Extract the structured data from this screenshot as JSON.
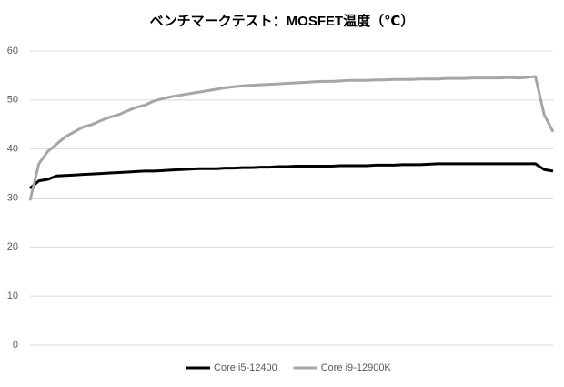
{
  "chart_data": {
    "type": "line",
    "title": "ベンチマークテスト：MOSFET温度（℃）",
    "series": [
      {
        "name": "Core i5-12400",
        "color": "#000000",
        "values": [
          32,
          33.5,
          33.8,
          34.5,
          34.6,
          34.7,
          34.8,
          34.9,
          35,
          35.1,
          35.2,
          35.3,
          35.4,
          35.5,
          35.5,
          35.6,
          35.7,
          35.8,
          35.9,
          36,
          36,
          36,
          36.1,
          36.1,
          36.2,
          36.2,
          36.3,
          36.3,
          36.4,
          36.4,
          36.5,
          36.5,
          36.5,
          36.5,
          36.5,
          36.6,
          36.6,
          36.6,
          36.6,
          36.7,
          36.7,
          36.7,
          36.8,
          36.8,
          36.8,
          36.9,
          37,
          37,
          37,
          37,
          37,
          37,
          37,
          37,
          37,
          37,
          37,
          37,
          35.8,
          35.5
        ]
      },
      {
        "name": "Core i9-12900K",
        "color": "#a6a6a6",
        "values": [
          29.5,
          37,
          39.5,
          41,
          42.5,
          43.5,
          44.5,
          45,
          45.8,
          46.5,
          47,
          47.8,
          48.5,
          49,
          49.8,
          50.3,
          50.7,
          51,
          51.3,
          51.6,
          51.9,
          52.2,
          52.5,
          52.7,
          52.9,
          53,
          53.1,
          53.2,
          53.3,
          53.4,
          53.5,
          53.6,
          53.7,
          53.8,
          53.8,
          53.9,
          54,
          54,
          54,
          54.1,
          54.1,
          54.2,
          54.2,
          54.2,
          54.3,
          54.3,
          54.3,
          54.4,
          54.4,
          54.4,
          54.5,
          54.5,
          54.5,
          54.5,
          54.6,
          54.5,
          54.6,
          54.8,
          47,
          43.5
        ]
      }
    ],
    "ylim": [
      0,
      60
    ],
    "yticks": [
      0,
      10,
      20,
      30,
      40,
      50,
      60
    ],
    "grid": true,
    "legend": "bottom"
  }
}
